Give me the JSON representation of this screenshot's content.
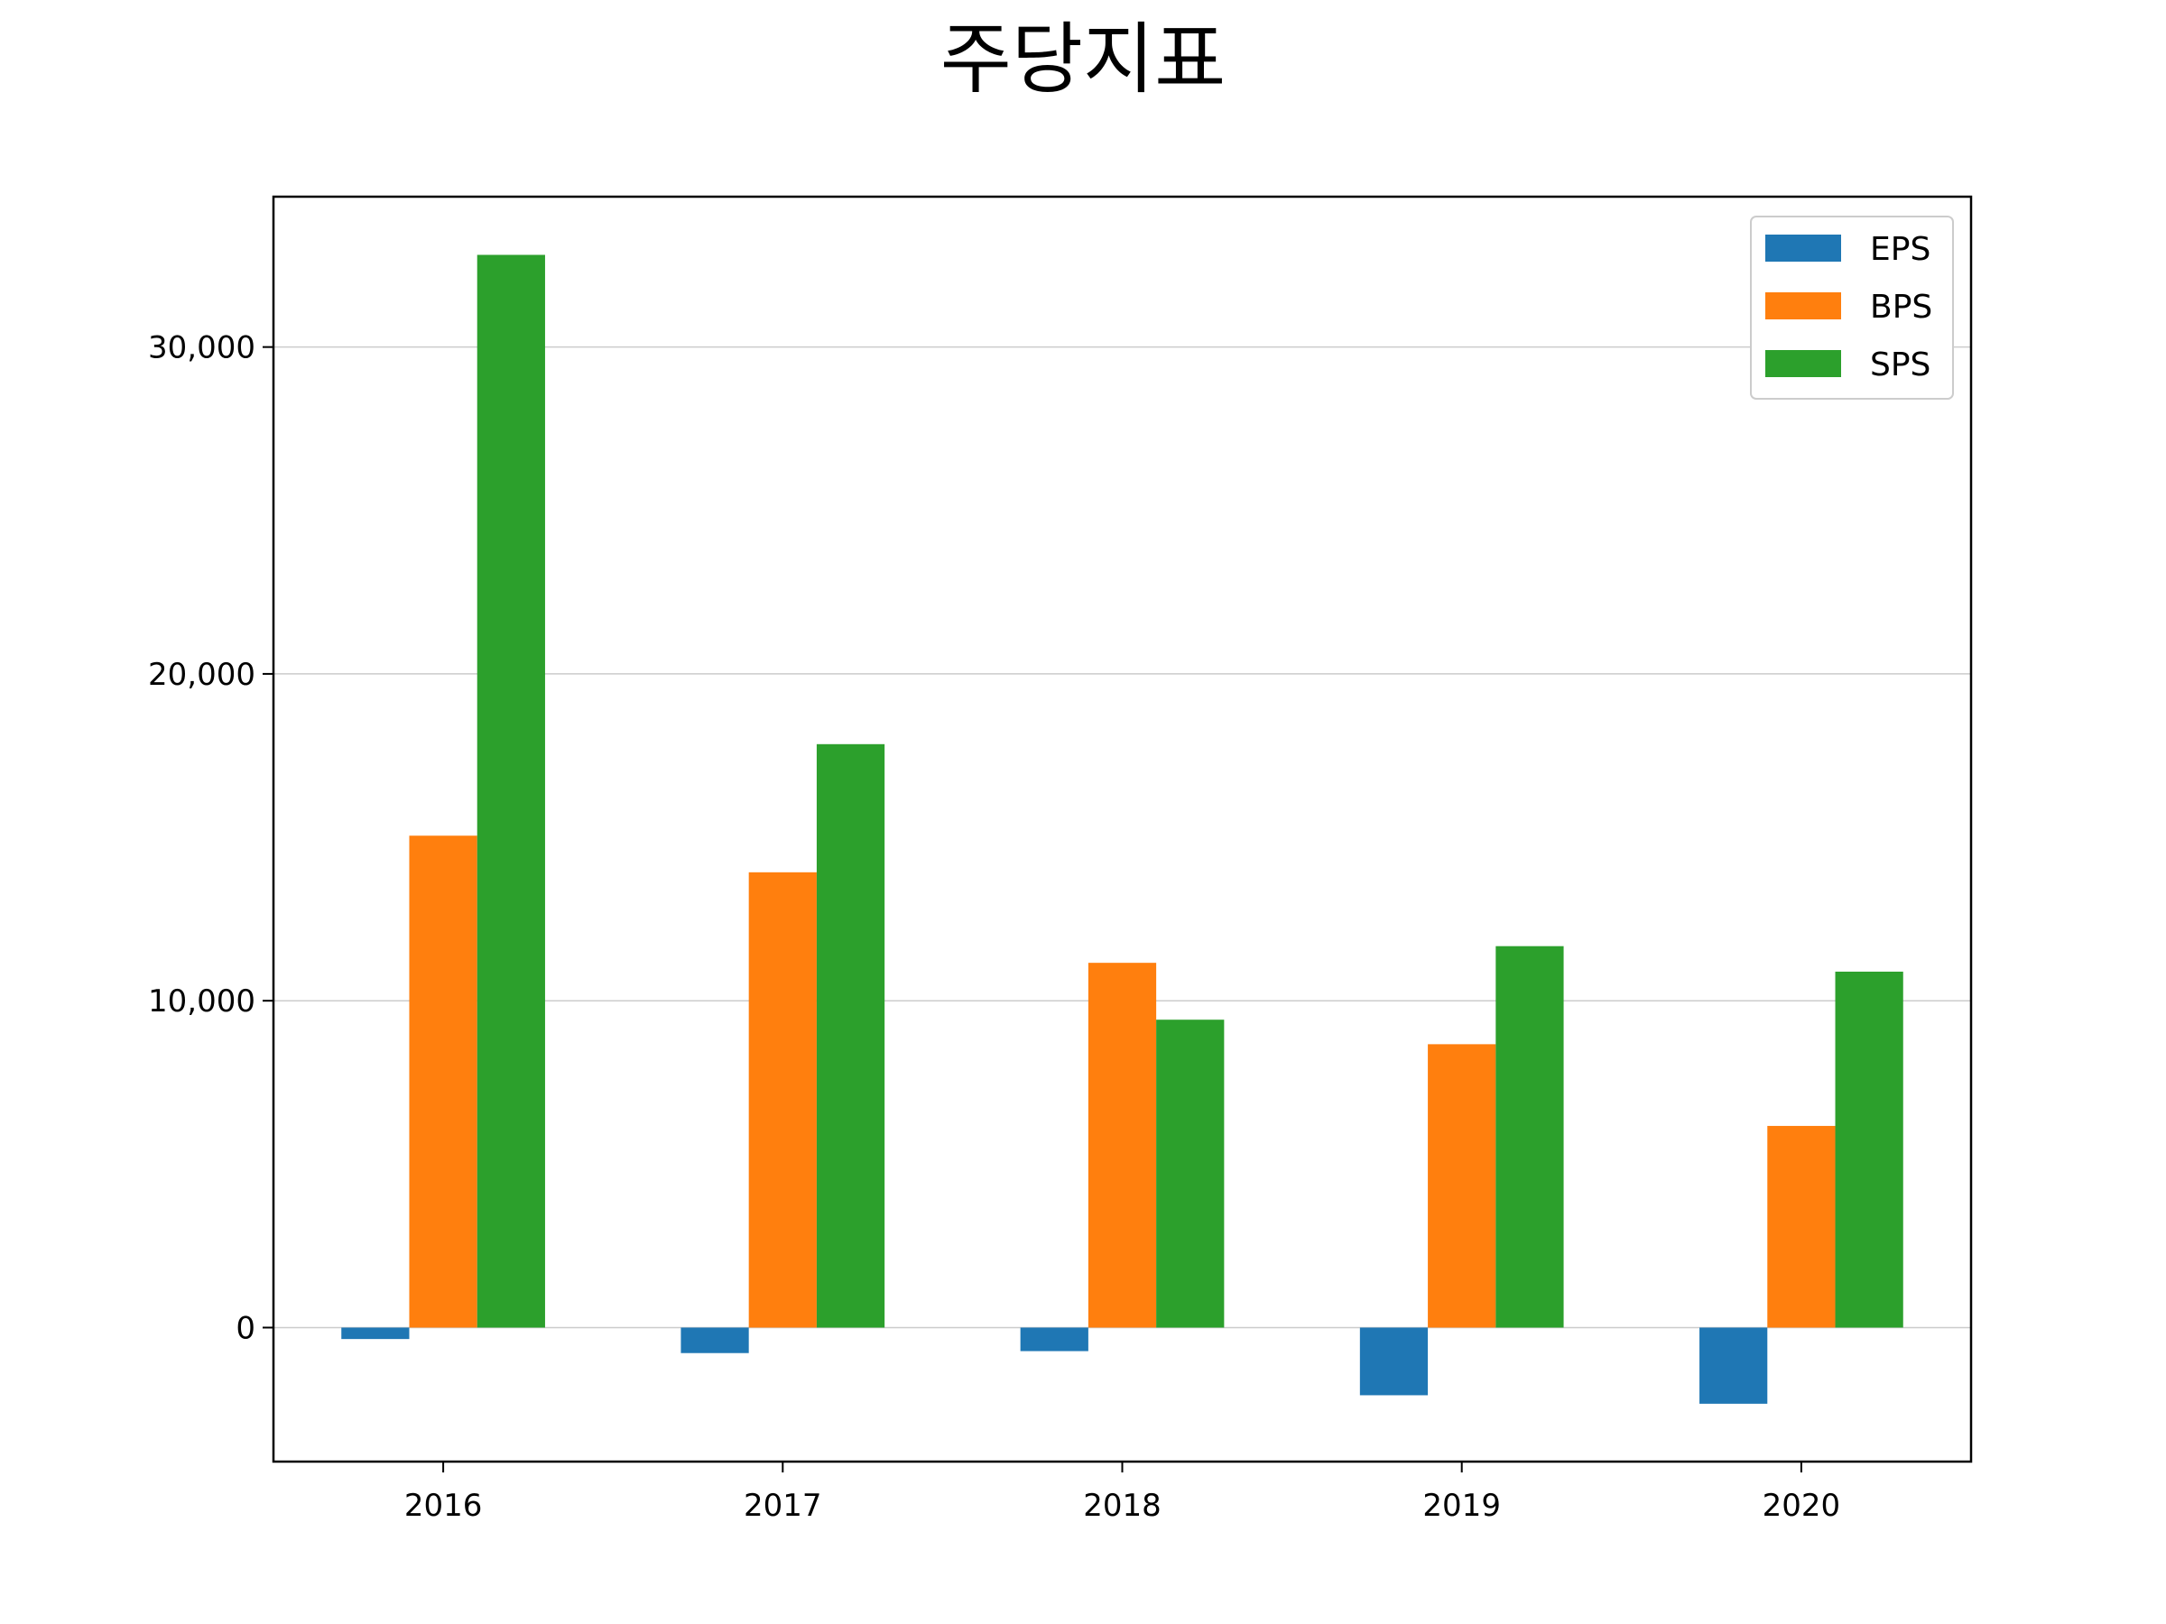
{
  "chart_data": {
    "type": "bar",
    "title": "주당지표",
    "xlabel": "",
    "ylabel": "",
    "categories": [
      "2016",
      "2017",
      "2018",
      "2019",
      "2020"
    ],
    "series": [
      {
        "name": "EPS",
        "color": "#1f77b4",
        "values": [
          -350,
          -780,
          -720,
          -2070,
          -2330
        ]
      },
      {
        "name": "BPS",
        "color": "#ff7f0e",
        "values": [
          15050,
          13930,
          11160,
          8670,
          6170
        ]
      },
      {
        "name": "SPS",
        "color": "#2ca02c",
        "values": [
          32820,
          17850,
          9420,
          11670,
          10890
        ]
      }
    ],
    "ylim": [
      -4100,
      34600
    ],
    "yticks": [
      0,
      10000,
      20000,
      30000
    ],
    "ytick_labels": [
      "0",
      "10,000",
      "20,000",
      "30,000"
    ],
    "grid": "y",
    "legend_position": "top-right"
  }
}
